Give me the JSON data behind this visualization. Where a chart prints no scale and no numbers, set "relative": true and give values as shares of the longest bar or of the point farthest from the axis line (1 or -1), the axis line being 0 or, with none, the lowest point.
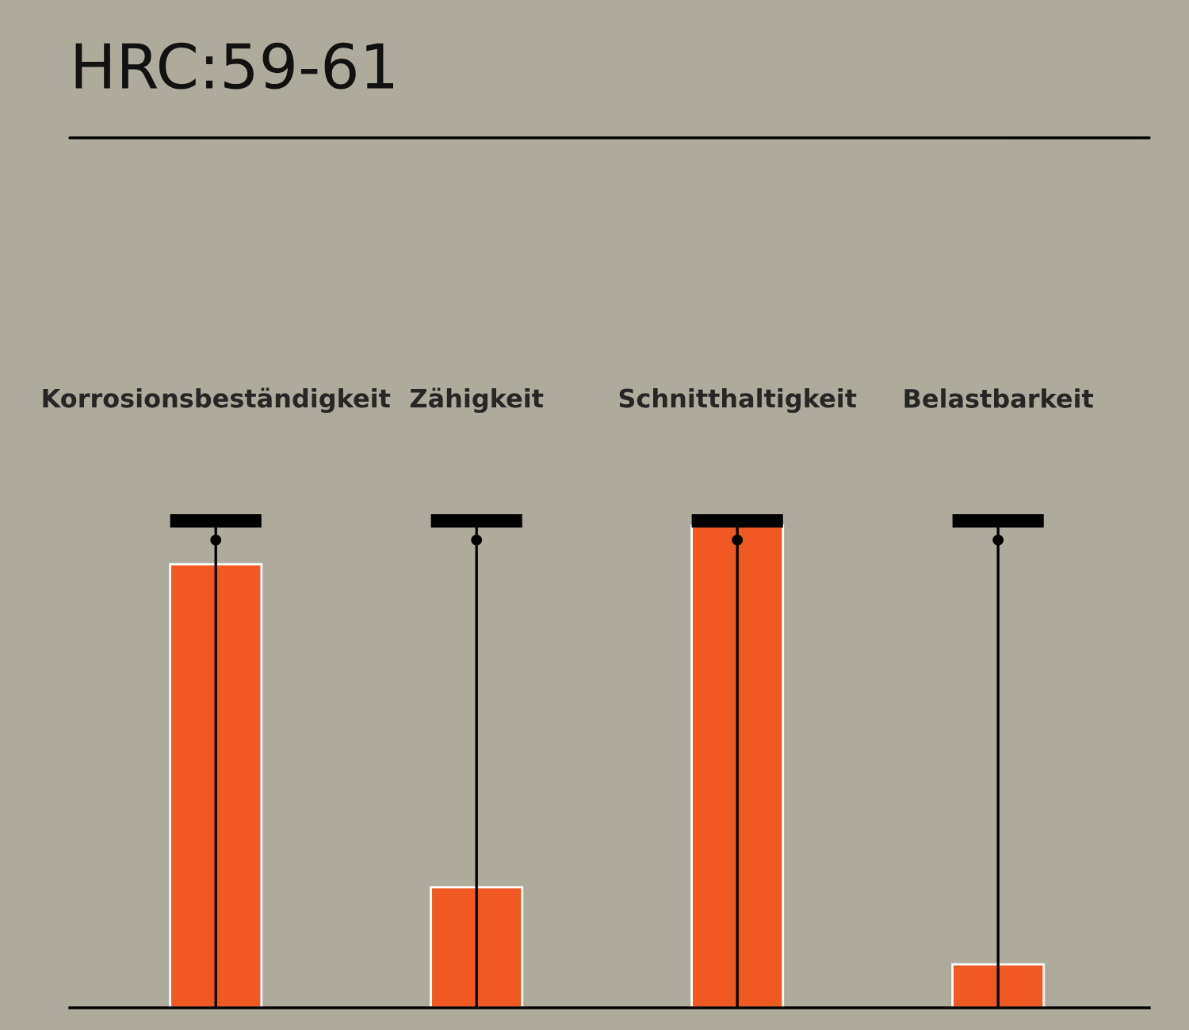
{
  "chart_data": {
    "type": "bar",
    "title": "HRC:59-61",
    "relative": true,
    "categories": [
      "Korrosionsbeständigkeit",
      "Zähigkeit",
      "Schnitthaltigkeit",
      "Belastbarkeit"
    ],
    "values": [
      0.92,
      0.25,
      1.0,
      0.09
    ],
    "color": "#f05a22",
    "grid": "x",
    "legend": false
  }
}
